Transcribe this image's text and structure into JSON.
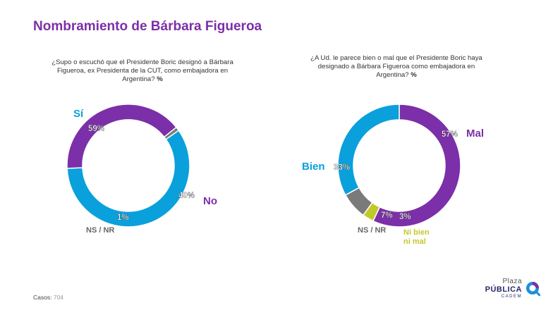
{
  "title": "Nombramiento de Bárbara Figueroa",
  "footer": {
    "cases_label": "Casos:",
    "cases_value": "704"
  },
  "logo": {
    "line1": "Plaza",
    "line2": "PÚBLICA",
    "line3": "CADEM",
    "icon": "plaza-publica-logo-icon"
  },
  "colors": {
    "accent": "#7b2fa8",
    "blue": "#0aa0dc",
    "purple": "#7b2fa8",
    "gray": "#7a7a7a",
    "olive": "#c3c92a"
  },
  "chart_data": [
    {
      "type": "pie",
      "title": "¿Supo o escuchó que el Presidente Boric designó a Bárbara Figueroa, ex Presidenta de la CUT, como embajadora en Argentina?",
      "unit": "%",
      "categories": [
        "Sí",
        "No",
        "NS / NR"
      ],
      "values": [
        59,
        40,
        1
      ],
      "value_labels": [
        "59%",
        "40%",
        "1%"
      ],
      "colors": [
        "#0aa0dc",
        "#7b2fa8",
        "#7a7a7a"
      ]
    },
    {
      "type": "pie",
      "title": "¿A Ud. le parece bien o mal que el Presidente Boric haya designado a Bárbara Figueroa como embajadora en Argentina?",
      "unit": "%",
      "categories": [
        "Mal",
        "Ni bien ni mal",
        "NS / NR",
        "Bien"
      ],
      "values": [
        57,
        3,
        7,
        33
      ],
      "value_labels": [
        "57%",
        "3%",
        "7%",
        "33%"
      ],
      "colors": [
        "#7b2fa8",
        "#c3c92a",
        "#7a7a7a",
        "#0aa0dc"
      ]
    }
  ]
}
